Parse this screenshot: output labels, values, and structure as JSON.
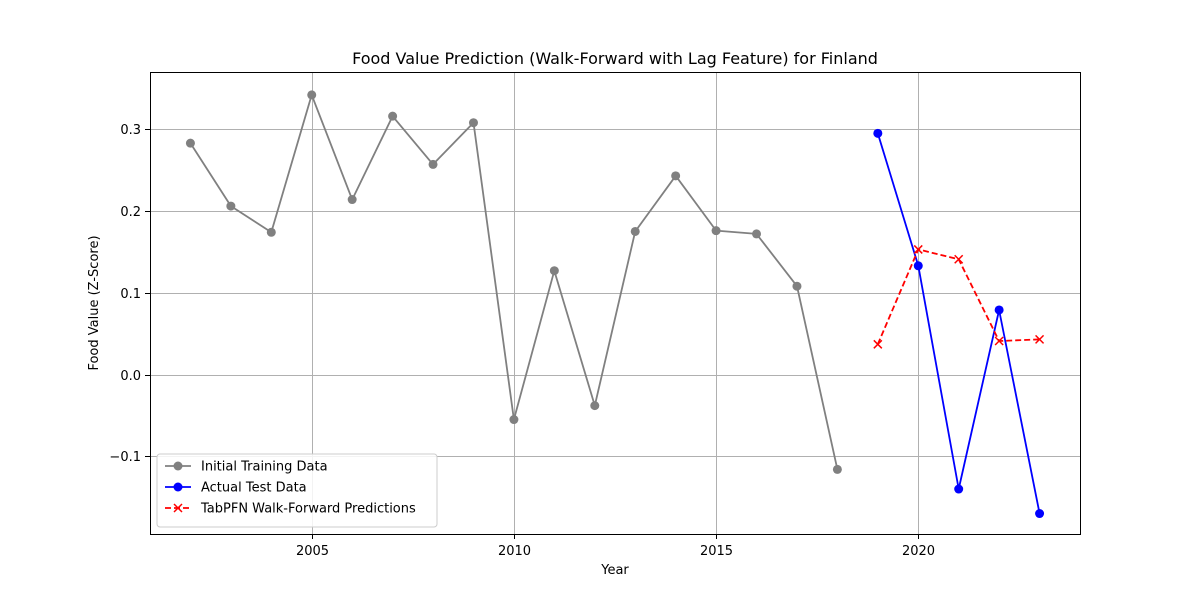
{
  "chart_data": {
    "type": "line",
    "title": "Food Value Prediction (Walk-Forward with Lag Feature) for Finland",
    "xlabel": "Year",
    "ylabel": "Food Value (Z-Score)",
    "xlim": [
      2001.0,
      2024.0
    ],
    "ylim": [
      -0.195,
      0.37
    ],
    "xticks": [
      2005,
      2010,
      2015,
      2020
    ],
    "yticks": [
      -0.1,
      0.0,
      0.1,
      0.2,
      0.3
    ],
    "ytick_labels": [
      "−0.1",
      "0.0",
      "0.1",
      "0.2",
      "0.3"
    ],
    "grid": true,
    "legend_position": "lower-left",
    "series": [
      {
        "name": "Initial Training Data",
        "color": "#808080",
        "marker": "circle",
        "linestyle": "solid",
        "x": [
          2002,
          2003,
          2004,
          2005,
          2006,
          2007,
          2008,
          2009,
          2010,
          2011,
          2012,
          2013,
          2014,
          2015,
          2016,
          2017,
          2018
        ],
        "y": [
          0.283,
          0.206,
          0.174,
          0.342,
          0.214,
          0.316,
          0.257,
          0.308,
          -0.055,
          0.127,
          -0.038,
          0.175,
          0.243,
          0.176,
          0.172,
          0.108,
          -0.116
        ]
      },
      {
        "name": "Actual Test Data",
        "color": "#0000ff",
        "marker": "circle",
        "linestyle": "solid",
        "x": [
          2019,
          2020,
          2021,
          2022,
          2023
        ],
        "y": [
          0.295,
          0.133,
          -0.14,
          0.079,
          -0.17
        ]
      },
      {
        "name": "TabPFN Walk-Forward Predictions",
        "color": "#ff0000",
        "marker": "x",
        "linestyle": "dashed",
        "x": [
          2019,
          2020,
          2021,
          2022,
          2023
        ],
        "y": [
          0.037,
          0.153,
          0.141,
          0.041,
          0.043
        ]
      }
    ]
  }
}
